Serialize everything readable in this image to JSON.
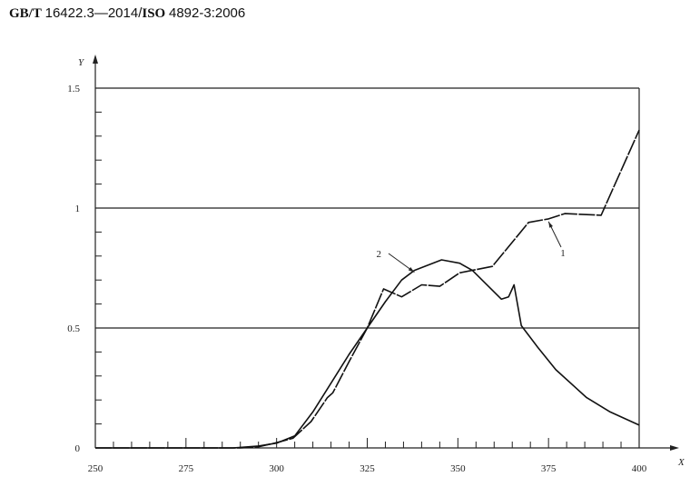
{
  "header": {
    "standard_prefix": "GB/T",
    "standard_number": "16422.3—2014/",
    "iso_prefix": "ISO",
    "iso_number": "4892-3:2006"
  },
  "chart_data": {
    "type": "line",
    "title": "",
    "xlabel": "X",
    "ylabel": "Y",
    "xlim": [
      250,
      400
    ],
    "ylim": [
      0,
      1.5
    ],
    "x_ticks": [
      250,
      275,
      300,
      325,
      350,
      375,
      400
    ],
    "x_tick_labels": [
      "250",
      "275",
      "300",
      "325",
      "350",
      "375",
      "400"
    ],
    "y_ticks": [
      0,
      0.5,
      1,
      1.5
    ],
    "y_tick_labels": [
      "0",
      "0.5",
      "1",
      "1.5"
    ],
    "grid": "horizontal at 0.5, 1, 1.5",
    "series": [
      {
        "label": "1",
        "color": "#111111",
        "x": [
          250,
          290,
          295,
          299.5,
          304.5,
          309.5,
          314,
          315.5,
          320,
          325,
          329.5,
          334.5,
          340,
          345,
          350.5,
          359.5,
          369.5,
          375,
          379.5,
          389.5,
          400
        ],
        "y": [
          0,
          0,
          0.005,
          0.02,
          0.04,
          0.11,
          0.21,
          0.23,
          0.36,
          0.5,
          0.663,
          0.63,
          0.68,
          0.674,
          0.73,
          0.757,
          0.94,
          0.955,
          0.977,
          0.97,
          1.325
        ]
      },
      {
        "label": "2",
        "color": "#111111",
        "x": [
          250,
          288,
          295,
          300,
          305,
          310,
          315,
          320,
          325,
          330,
          334.5,
          338,
          345.5,
          350.5,
          354,
          362,
          364,
          365.5,
          367.5,
          372,
          377,
          385.5,
          392,
          400
        ],
        "y": [
          0,
          0,
          0.008,
          0.02,
          0.05,
          0.15,
          0.27,
          0.39,
          0.5,
          0.61,
          0.7,
          0.74,
          0.784,
          0.77,
          0.74,
          0.62,
          0.63,
          0.68,
          0.51,
          0.42,
          0.326,
          0.21,
          0.15,
          0.095
        ]
      }
    ],
    "annotations": [
      {
        "text": "1",
        "points_to": [
          375,
          0.955
        ]
      },
      {
        "text": "2",
        "points_to": [
          338,
          0.74
        ]
      }
    ]
  }
}
